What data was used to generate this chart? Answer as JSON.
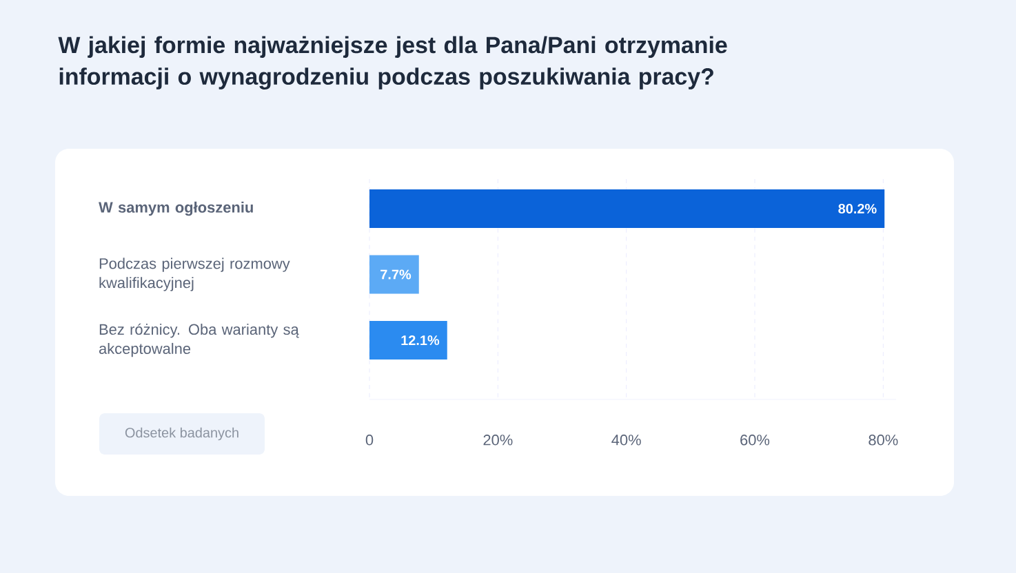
{
  "chart_data": {
    "type": "bar",
    "orientation": "horizontal",
    "title": "W jakiej formie najważniejsze jest dla Pana/Pani otrzymanie informacji o wynagrodzeniu podczas poszukiwania pracy?",
    "annotations": [
      "Odsetek badanych"
    ],
    "categories": [
      "**W samym ogłoszeniu**",
      "Podczas pierwszej rozmowy kwalifikacyjnej",
      "Bez różnicy. Oba warianty są akceptowalne"
    ],
    "values": [
      80.2,
      7.7,
      12.1
    ],
    "colors": [
      "#0b63d9",
      "#5caaf5",
      "#2b8bf0"
    ],
    "value_labels": [
      "80.2%",
      "7.7%",
      "12.1%"
    ],
    "xlim": [
      0,
      82
    ],
    "xticks": [
      0,
      {
        "value": 20,
        "label": "20%"
      },
      {
        "value": 40,
        "label": "40%"
      },
      {
        "value": 60,
        "label": "60%"
      },
      {
        "value": 80,
        "label": "80%"
      }
    ],
    "grid": "x"
  }
}
